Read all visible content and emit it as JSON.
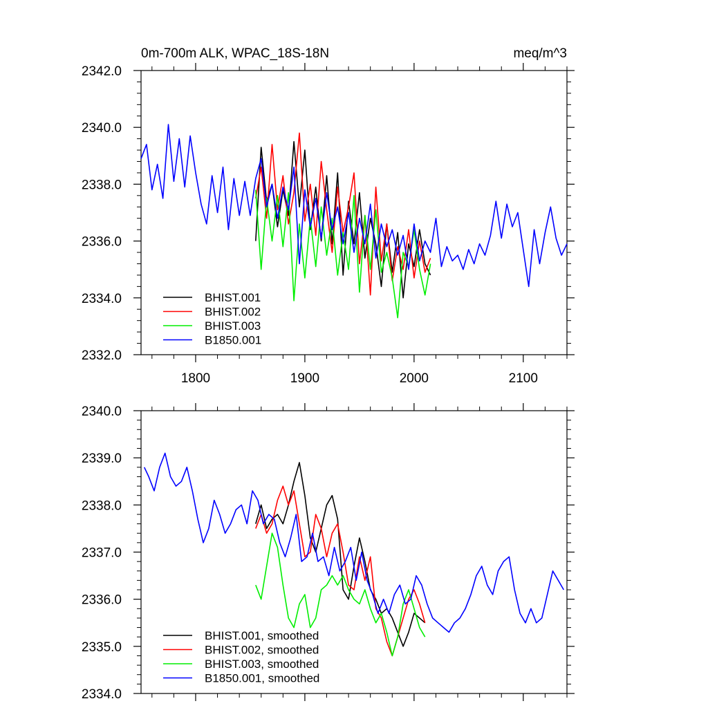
{
  "chart_data": [
    {
      "type": "line",
      "title_left": "0m-700m ALK, WPAC_18S-18N",
      "title_right": "meq/m^3",
      "xlim": [
        1750,
        2140
      ],
      "ylim": [
        2332,
        2342
      ],
      "x_ticks": [
        1800,
        1900,
        2000,
        2100
      ],
      "x_tick_labels": [
        "1800",
        "1900",
        "2000",
        "2100"
      ],
      "y_ticks": [
        2332,
        2334,
        2336,
        2338,
        2340,
        2342
      ],
      "y_tick_labels": [
        "2332.0",
        "2334.0",
        "2336.0",
        "2338.0",
        "2340.0",
        "2342.0"
      ],
      "legend_position": "bottom-left",
      "series": [
        {
          "name": "BHIST.001",
          "color": "#000000",
          "x": [
            1855,
            1860,
            1865,
            1870,
            1875,
            1880,
            1885,
            1890,
            1895,
            1900,
            1905,
            1910,
            1915,
            1920,
            1925,
            1930,
            1935,
            1940,
            1945,
            1950,
            1955,
            1960,
            1965,
            1970,
            1975,
            1980,
            1985,
            1990,
            1995,
            2000,
            2005,
            2010,
            2015
          ],
          "y": [
            2336.0,
            2339.3,
            2337.4,
            2338.0,
            2336.5,
            2337.8,
            2336.9,
            2339.5,
            2337.2,
            2339.2,
            2336.4,
            2337.9,
            2336.0,
            2338.3,
            2335.9,
            2338.4,
            2334.8,
            2337.4,
            2335.9,
            2337.7,
            2335.4,
            2336.8,
            2335.9,
            2334.4,
            2336.6,
            2334.9,
            2336.3,
            2334.0,
            2335.9,
            2335.1,
            2336.4,
            2335.2,
            2334.8
          ]
        },
        {
          "name": "BHIST.002",
          "color": "#ff0000",
          "x": [
            1855,
            1860,
            1865,
            1870,
            1875,
            1880,
            1885,
            1890,
            1895,
            1900,
            1905,
            1910,
            1915,
            1920,
            1925,
            1930,
            1935,
            1940,
            1945,
            1950,
            1955,
            1960,
            1965,
            1970,
            1975,
            1980,
            1985,
            1990,
            1995,
            2000,
            2005,
            2010,
            2015
          ],
          "y": [
            2337.5,
            2338.6,
            2336.8,
            2339.4,
            2337.1,
            2338.3,
            2336.6,
            2337.7,
            2339.8,
            2336.7,
            2338.0,
            2336.2,
            2338.8,
            2337.1,
            2335.6,
            2337.9,
            2336.3,
            2337.2,
            2338.4,
            2335.2,
            2336.9,
            2334.1,
            2337.9,
            2335.3,
            2336.6,
            2334.6,
            2335.8,
            2335.0,
            2336.4,
            2334.7,
            2336.0,
            2334.9,
            2335.4
          ]
        },
        {
          "name": "BHIST.003",
          "color": "#00ee00",
          "x": [
            1855,
            1860,
            1865,
            1870,
            1875,
            1880,
            1885,
            1890,
            1895,
            1900,
            1905,
            1910,
            1915,
            1920,
            1925,
            1930,
            1935,
            1940,
            1945,
            1950,
            1955,
            1960,
            1965,
            1970,
            1975,
            1980,
            1985,
            1990,
            1995,
            2000,
            2005,
            2010,
            2015
          ],
          "y": [
            2337.8,
            2335.0,
            2337.5,
            2336.0,
            2337.6,
            2335.8,
            2337.7,
            2333.9,
            2336.6,
            2334.7,
            2336.8,
            2335.1,
            2337.2,
            2335.5,
            2336.8,
            2334.8,
            2336.3,
            2335.0,
            2337.6,
            2334.2,
            2336.9,
            2335.0,
            2337.1,
            2334.9,
            2335.6,
            2334.7,
            2333.3,
            2335.6,
            2335.1,
            2336.4,
            2335.0,
            2334.1,
            2335.2
          ]
        },
        {
          "name": "B1850.001",
          "color": "#0000ff",
          "x": [
            1750,
            1755,
            1760,
            1765,
            1770,
            1775,
            1780,
            1785,
            1790,
            1795,
            1800,
            1805,
            1810,
            1815,
            1820,
            1825,
            1830,
            1835,
            1840,
            1845,
            1850,
            1855,
            1860,
            1865,
            1870,
            1875,
            1880,
            1885,
            1890,
            1895,
            1900,
            1905,
            1910,
            1915,
            1920,
            1925,
            1930,
            1935,
            1940,
            1945,
            1950,
            1955,
            1960,
            1965,
            1970,
            1975,
            1980,
            1985,
            1990,
            1995,
            2000,
            2005,
            2010,
            2015,
            2020,
            2025,
            2030,
            2035,
            2040,
            2045,
            2050,
            2055,
            2060,
            2065,
            2070,
            2075,
            2080,
            2085,
            2090,
            2095,
            2100,
            2105,
            2110,
            2115,
            2120,
            2125,
            2130,
            2135,
            2140
          ],
          "y": [
            2338.9,
            2339.4,
            2337.8,
            2338.7,
            2337.5,
            2340.1,
            2338.1,
            2339.6,
            2337.9,
            2339.7,
            2338.4,
            2337.3,
            2336.6,
            2338.3,
            2337.0,
            2338.6,
            2336.4,
            2338.2,
            2336.9,
            2338.1,
            2336.9,
            2338.2,
            2338.9,
            2337.2,
            2338.0,
            2336.8,
            2337.9,
            2337.1,
            2338.6,
            2335.2,
            2337.8,
            2336.5,
            2337.5,
            2336.1,
            2337.7,
            2336.4,
            2337.2,
            2335.9,
            2337.0,
            2335.6,
            2336.8,
            2335.9,
            2337.3,
            2335.4,
            2336.6,
            2335.8,
            2336.4,
            2335.5,
            2336.2,
            2335.0,
            2336.6,
            2335.3,
            2336.0,
            2335.6,
            2336.8,
            2335.1,
            2335.8,
            2335.3,
            2335.5,
            2335.0,
            2335.7,
            2335.2,
            2335.9,
            2335.5,
            2336.2,
            2337.4,
            2336.1,
            2337.3,
            2336.5,
            2337.0,
            2335.7,
            2334.4,
            2336.4,
            2335.2,
            2336.3,
            2337.2,
            2336.1,
            2335.5,
            2335.9
          ]
        }
      ]
    },
    {
      "type": "line",
      "xlim": [
        1750,
        2140
      ],
      "ylim": [
        2334,
        2340
      ],
      "y_ticks": [
        2334,
        2335,
        2336,
        2337,
        2338,
        2339,
        2340
      ],
      "y_tick_labels": [
        "2334.0",
        "2335.0",
        "2336.0",
        "2337.0",
        "2338.0",
        "2339.0",
        "2340.0"
      ],
      "legend_position": "bottom-left",
      "series": [
        {
          "name": "BHIST.001, smoothed",
          "color": "#000000",
          "x": [
            1855,
            1860,
            1865,
            1870,
            1875,
            1880,
            1885,
            1890,
            1895,
            1900,
            1905,
            1910,
            1915,
            1920,
            1925,
            1930,
            1935,
            1940,
            1945,
            1950,
            1955,
            1960,
            1965,
            1970,
            1975,
            1980,
            1985,
            1990,
            1995,
            2000,
            2005,
            2010
          ],
          "y": [
            2337.6,
            2338.0,
            2337.5,
            2337.7,
            2337.8,
            2337.6,
            2338.0,
            2338.5,
            2338.9,
            2338.2,
            2337.3,
            2337.0,
            2337.5,
            2338.0,
            2338.2,
            2337.7,
            2336.2,
            2336.0,
            2336.7,
            2337.3,
            2336.8,
            2336.2,
            2336.0,
            2335.7,
            2335.8,
            2335.6,
            2335.3,
            2335.0,
            2335.3,
            2335.7,
            2335.6,
            2335.5
          ]
        },
        {
          "name": "BHIST.002, smoothed",
          "color": "#ff0000",
          "x": [
            1855,
            1860,
            1865,
            1870,
            1875,
            1880,
            1885,
            1890,
            1895,
            1900,
            1905,
            1910,
            1915,
            1920,
            1925,
            1930,
            1935,
            1940,
            1945,
            1950,
            1955,
            1960,
            1965,
            1970,
            1975,
            1980,
            1985,
            1990,
            1995,
            2000,
            2005,
            2010
          ],
          "y": [
            2337.5,
            2337.8,
            2337.4,
            2337.6,
            2338.1,
            2338.4,
            2338.0,
            2338.3,
            2337.6,
            2336.9,
            2337.0,
            2337.8,
            2337.5,
            2336.9,
            2337.4,
            2337.6,
            2337.0,
            2336.3,
            2336.2,
            2336.9,
            2336.4,
            2336.9,
            2335.8,
            2335.6,
            2335.1,
            2334.8,
            2335.2,
            2335.6,
            2336.0,
            2336.2,
            2335.9,
            2335.5
          ]
        },
        {
          "name": "BHIST.003, smoothed",
          "color": "#00ee00",
          "x": [
            1855,
            1860,
            1865,
            1870,
            1875,
            1880,
            1885,
            1890,
            1895,
            1900,
            1905,
            1910,
            1915,
            1920,
            1925,
            1930,
            1935,
            1940,
            1945,
            1950,
            1955,
            1960,
            1965,
            1970,
            1975,
            1980,
            1985,
            1990,
            1995,
            2000,
            2005,
            2010
          ],
          "y": [
            2336.3,
            2336.0,
            2336.7,
            2337.4,
            2337.1,
            2336.3,
            2335.6,
            2335.4,
            2335.9,
            2336.1,
            2335.4,
            2335.6,
            2336.2,
            2336.3,
            2336.5,
            2336.3,
            2336.5,
            2336.2,
            2336.0,
            2335.9,
            2336.2,
            2335.8,
            2335.5,
            2335.7,
            2335.3,
            2334.8,
            2335.2,
            2335.9,
            2336.2,
            2335.8,
            2335.4,
            2335.2
          ]
        },
        {
          "name": "B1850.001, smoothed",
          "color": "#0000ff",
          "x": [
            1753,
            1757,
            1762,
            1767,
            1772,
            1777,
            1782,
            1787,
            1792,
            1797,
            1802,
            1807,
            1812,
            1817,
            1822,
            1827,
            1832,
            1837,
            1842,
            1847,
            1852,
            1857,
            1862,
            1867,
            1872,
            1877,
            1882,
            1887,
            1892,
            1897,
            1902,
            1907,
            1912,
            1917,
            1922,
            1927,
            1932,
            1937,
            1942,
            1947,
            1952,
            1957,
            1962,
            1967,
            1972,
            1977,
            1982,
            1987,
            1992,
            1997,
            2002,
            2007,
            2012,
            2017,
            2022,
            2027,
            2032,
            2037,
            2042,
            2047,
            2052,
            2057,
            2062,
            2067,
            2072,
            2077,
            2082,
            2087,
            2092,
            2097,
            2102,
            2107,
            2112,
            2117,
            2122,
            2127,
            2132,
            2137
          ],
          "y": [
            2338.8,
            2338.6,
            2338.3,
            2338.8,
            2339.1,
            2338.6,
            2338.4,
            2338.5,
            2338.8,
            2338.3,
            2337.7,
            2337.2,
            2337.5,
            2338.1,
            2337.8,
            2337.4,
            2337.6,
            2337.9,
            2338.0,
            2337.6,
            2338.3,
            2338.1,
            2337.6,
            2337.8,
            2337.7,
            2337.2,
            2336.9,
            2337.3,
            2337.8,
            2336.8,
            2336.9,
            2337.4,
            2336.8,
            2336.9,
            2336.5,
            2337.1,
            2336.6,
            2336.8,
            2337.1,
            2336.4,
            2337.0,
            2336.4,
            2336.1,
            2335.7,
            2336.0,
            2335.7,
            2336.1,
            2336.3,
            2335.9,
            2336.0,
            2336.5,
            2336.3,
            2335.9,
            2335.6,
            2335.5,
            2335.4,
            2335.3,
            2335.5,
            2335.6,
            2335.8,
            2336.1,
            2336.5,
            2336.7,
            2336.3,
            2336.1,
            2336.6,
            2336.8,
            2336.9,
            2336.2,
            2335.7,
            2335.5,
            2335.8,
            2335.5,
            2335.6,
            2336.1,
            2336.6,
            2336.4,
            2336.2
          ]
        }
      ]
    }
  ]
}
